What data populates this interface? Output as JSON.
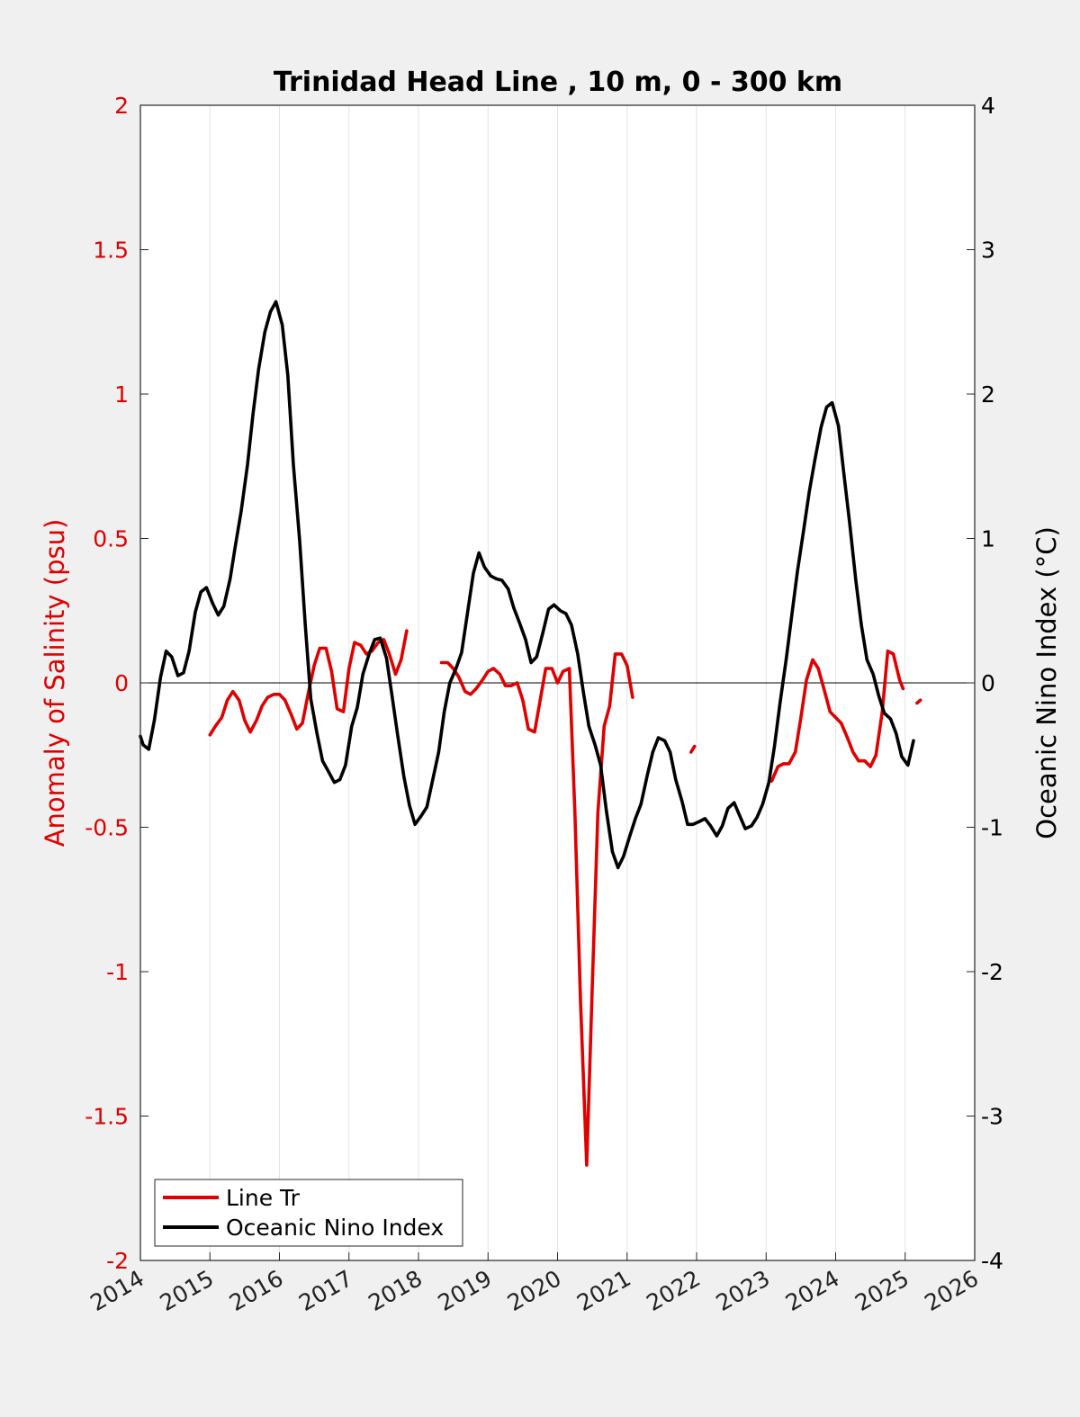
{
  "chart_data": {
    "type": "line",
    "title": "Trinidad Head Line , 10 m, 0 - 300 km",
    "xlim": [
      2014,
      2026
    ],
    "x_ticks": [
      "2014",
      "2015",
      "2016",
      "2017",
      "2018",
      "2019",
      "2020",
      "2021",
      "2022",
      "2023",
      "2024",
      "2025",
      "2026"
    ],
    "left_axis": {
      "label": "Anomaly of Salinity (psu)",
      "ylim": [
        -2,
        2
      ],
      "ticks": [
        "2",
        "1.5",
        "1",
        "0.5",
        "0",
        "-0.5",
        "-1",
        "-1.5",
        "-2"
      ],
      "color": "#e00000"
    },
    "right_axis": {
      "label": "Oceanic Nino Index (°C)",
      "ylim": [
        -4,
        4
      ],
      "ticks": [
        "4",
        "3",
        "2",
        "1",
        "0",
        "-1",
        "-2",
        "-3",
        "-4"
      ],
      "color": "#000000"
    },
    "grid": "vertical",
    "zero_line": true,
    "legend_position": "bottom-left",
    "series": [
      {
        "name": "Line Tr",
        "axis": "left",
        "color": "#e00000",
        "segments": [
          [
            [
              2015.0,
              -0.18
            ],
            [
              2015.08,
              -0.15
            ],
            [
              2015.17,
              -0.12
            ],
            [
              2015.25,
              -0.06
            ],
            [
              2015.33,
              -0.03
            ],
            [
              2015.42,
              -0.06
            ],
            [
              2015.5,
              -0.13
            ],
            [
              2015.58,
              -0.17
            ],
            [
              2015.67,
              -0.13
            ],
            [
              2015.75,
              -0.08
            ],
            [
              2015.83,
              -0.05
            ],
            [
              2015.92,
              -0.04
            ],
            [
              2016.0,
              -0.04
            ],
            [
              2016.08,
              -0.06
            ],
            [
              2016.17,
              -0.11
            ],
            [
              2016.25,
              -0.16
            ],
            [
              2016.33,
              -0.14
            ],
            [
              2016.42,
              -0.03
            ],
            [
              2016.5,
              0.06
            ],
            [
              2016.58,
              0.12
            ],
            [
              2016.67,
              0.12
            ],
            [
              2016.75,
              0.04
            ],
            [
              2016.83,
              -0.09
            ],
            [
              2016.92,
              -0.1
            ],
            [
              2017.0,
              0.05
            ],
            [
              2017.08,
              0.14
            ],
            [
              2017.17,
              0.13
            ],
            [
              2017.25,
              0.1
            ],
            [
              2017.33,
              0.11
            ],
            [
              2017.42,
              0.14
            ],
            [
              2017.5,
              0.15
            ],
            [
              2017.58,
              0.1
            ],
            [
              2017.67,
              0.03
            ],
            [
              2017.75,
              0.08
            ],
            [
              2017.83,
              0.18
            ]
          ],
          [
            [
              2018.33,
              0.07
            ],
            [
              2018.42,
              0.07
            ],
            [
              2018.5,
              0.05
            ],
            [
              2018.58,
              0.02
            ],
            [
              2018.67,
              -0.03
            ],
            [
              2018.75,
              -0.04
            ],
            [
              2018.83,
              -0.02
            ],
            [
              2018.92,
              0.01
            ],
            [
              2019.0,
              0.04
            ],
            [
              2019.08,
              0.05
            ],
            [
              2019.17,
              0.03
            ],
            [
              2019.25,
              -0.01
            ],
            [
              2019.33,
              -0.01
            ],
            [
              2019.42,
              0.0
            ],
            [
              2019.5,
              -0.06
            ],
            [
              2019.58,
              -0.16
            ],
            [
              2019.67,
              -0.17
            ],
            [
              2019.75,
              -0.06
            ],
            [
              2019.83,
              0.05
            ],
            [
              2019.92,
              0.05
            ],
            [
              2020.0,
              0.0
            ],
            [
              2020.08,
              0.04
            ],
            [
              2020.17,
              0.05
            ],
            [
              2020.25,
              -0.45
            ],
            [
              2020.33,
              -1.1
            ],
            [
              2020.42,
              -1.67
            ],
            [
              2020.5,
              -1.05
            ],
            [
              2020.58,
              -0.45
            ],
            [
              2020.67,
              -0.15
            ],
            [
              2020.75,
              -0.08
            ],
            [
              2020.83,
              0.1
            ],
            [
              2020.92,
              0.1
            ],
            [
              2021.0,
              0.06
            ],
            [
              2021.08,
              -0.05
            ]
          ],
          [
            [
              2021.92,
              -0.24
            ],
            [
              2021.97,
              -0.22
            ]
          ],
          [
            [
              2023.08,
              -0.34
            ],
            [
              2023.17,
              -0.29
            ],
            [
              2023.25,
              -0.28
            ],
            [
              2023.33,
              -0.28
            ],
            [
              2023.42,
              -0.24
            ],
            [
              2023.5,
              -0.12
            ],
            [
              2023.58,
              0.01
            ],
            [
              2023.67,
              0.08
            ],
            [
              2023.75,
              0.05
            ],
            [
              2023.83,
              -0.02
            ],
            [
              2023.92,
              -0.1
            ],
            [
              2024.0,
              -0.12
            ],
            [
              2024.08,
              -0.14
            ],
            [
              2024.17,
              -0.19
            ],
            [
              2024.25,
              -0.24
            ],
            [
              2024.33,
              -0.27
            ],
            [
              2024.42,
              -0.27
            ],
            [
              2024.5,
              -0.29
            ],
            [
              2024.58,
              -0.25
            ],
            [
              2024.67,
              -0.1
            ],
            [
              2024.75,
              0.11
            ],
            [
              2024.83,
              0.1
            ],
            [
              2024.92,
              0.01
            ],
            [
              2024.97,
              -0.02
            ]
          ],
          [
            [
              2025.17,
              -0.07
            ],
            [
              2025.22,
              -0.06
            ]
          ]
        ]
      },
      {
        "name": "Oceanic Nino Index",
        "axis": "right",
        "color": "#000000",
        "segments": [
          [
            [
              2014.0,
              -0.37
            ],
            [
              2014.04,
              -0.43
            ],
            [
              2014.12,
              -0.46
            ],
            [
              2014.2,
              -0.26
            ],
            [
              2014.29,
              0.04
            ],
            [
              2014.37,
              0.22
            ],
            [
              2014.45,
              0.18
            ],
            [
              2014.54,
              0.05
            ],
            [
              2014.62,
              0.07
            ],
            [
              2014.7,
              0.22
            ],
            [
              2014.79,
              0.49
            ],
            [
              2014.87,
              0.63
            ],
            [
              2014.95,
              0.66
            ],
            [
              2015.04,
              0.55
            ],
            [
              2015.12,
              0.47
            ],
            [
              2015.2,
              0.53
            ],
            [
              2015.29,
              0.72
            ],
            [
              2015.37,
              0.96
            ],
            [
              2015.45,
              1.19
            ],
            [
              2015.54,
              1.51
            ],
            [
              2015.62,
              1.86
            ],
            [
              2015.7,
              2.17
            ],
            [
              2015.79,
              2.43
            ],
            [
              2015.87,
              2.57
            ],
            [
              2015.95,
              2.64
            ],
            [
              2016.04,
              2.48
            ],
            [
              2016.12,
              2.13
            ],
            [
              2016.2,
              1.51
            ],
            [
              2016.29,
              0.99
            ],
            [
              2016.37,
              0.41
            ],
            [
              2016.45,
              -0.11
            ],
            [
              2016.54,
              -0.35
            ],
            [
              2016.62,
              -0.54
            ],
            [
              2016.7,
              -0.61
            ],
            [
              2016.79,
              -0.69
            ],
            [
              2016.87,
              -0.67
            ],
            [
              2016.95,
              -0.57
            ],
            [
              2017.04,
              -0.3
            ],
            [
              2017.12,
              -0.17
            ],
            [
              2017.2,
              0.06
            ],
            [
              2017.29,
              0.2
            ],
            [
              2017.37,
              0.3
            ],
            [
              2017.45,
              0.31
            ],
            [
              2017.54,
              0.17
            ],
            [
              2017.62,
              -0.09
            ],
            [
              2017.7,
              -0.36
            ],
            [
              2017.79,
              -0.65
            ],
            [
              2017.87,
              -0.85
            ],
            [
              2017.95,
              -0.98
            ],
            [
              2018.04,
              -0.92
            ],
            [
              2018.12,
              -0.86
            ],
            [
              2018.2,
              -0.68
            ],
            [
              2018.29,
              -0.48
            ],
            [
              2018.37,
              -0.2
            ],
            [
              2018.45,
              0.0
            ],
            [
              2018.54,
              0.1
            ],
            [
              2018.62,
              0.21
            ],
            [
              2018.7,
              0.47
            ],
            [
              2018.79,
              0.76
            ],
            [
              2018.87,
              0.9
            ],
            [
              2018.95,
              0.8
            ],
            [
              2019.04,
              0.74
            ],
            [
              2019.12,
              0.72
            ],
            [
              2019.2,
              0.71
            ],
            [
              2019.29,
              0.65
            ],
            [
              2019.37,
              0.52
            ],
            [
              2019.45,
              0.42
            ],
            [
              2019.54,
              0.3
            ],
            [
              2019.62,
              0.14
            ],
            [
              2019.7,
              0.18
            ],
            [
              2019.79,
              0.35
            ],
            [
              2019.87,
              0.51
            ],
            [
              2019.95,
              0.54
            ],
            [
              2020.04,
              0.5
            ],
            [
              2020.12,
              0.48
            ],
            [
              2020.2,
              0.4
            ],
            [
              2020.29,
              0.2
            ],
            [
              2020.37,
              -0.06
            ],
            [
              2020.45,
              -0.3
            ],
            [
              2020.54,
              -0.43
            ],
            [
              2020.62,
              -0.57
            ],
            [
              2020.7,
              -0.88
            ],
            [
              2020.79,
              -1.17
            ],
            [
              2020.87,
              -1.28
            ],
            [
              2020.95,
              -1.2
            ],
            [
              2021.04,
              -1.06
            ],
            [
              2021.12,
              -0.94
            ],
            [
              2021.2,
              -0.84
            ],
            [
              2021.29,
              -0.64
            ],
            [
              2021.37,
              -0.48
            ],
            [
              2021.45,
              -0.38
            ],
            [
              2021.54,
              -0.4
            ],
            [
              2021.62,
              -0.48
            ],
            [
              2021.7,
              -0.67
            ],
            [
              2021.79,
              -0.82
            ],
            [
              2021.87,
              -0.98
            ],
            [
              2021.95,
              -0.98
            ],
            [
              2022.04,
              -0.96
            ],
            [
              2022.12,
              -0.94
            ],
            [
              2022.2,
              -0.99
            ],
            [
              2022.29,
              -1.06
            ],
            [
              2022.37,
              -0.99
            ],
            [
              2022.45,
              -0.87
            ],
            [
              2022.54,
              -0.83
            ],
            [
              2022.62,
              -0.92
            ],
            [
              2022.7,
              -1.01
            ],
            [
              2022.79,
              -0.99
            ],
            [
              2022.87,
              -0.93
            ],
            [
              2022.95,
              -0.84
            ],
            [
              2023.04,
              -0.69
            ],
            [
              2023.12,
              -0.44
            ],
            [
              2023.2,
              -0.14
            ],
            [
              2023.29,
              0.17
            ],
            [
              2023.37,
              0.47
            ],
            [
              2023.45,
              0.77
            ],
            [
              2023.54,
              1.06
            ],
            [
              2023.62,
              1.32
            ],
            [
              2023.7,
              1.54
            ],
            [
              2023.79,
              1.77
            ],
            [
              2023.87,
              1.91
            ],
            [
              2023.95,
              1.94
            ],
            [
              2024.04,
              1.78
            ],
            [
              2024.12,
              1.44
            ],
            [
              2024.2,
              1.11
            ],
            [
              2024.29,
              0.71
            ],
            [
              2024.37,
              0.4
            ],
            [
              2024.45,
              0.16
            ],
            [
              2024.54,
              0.06
            ],
            [
              2024.62,
              -0.09
            ],
            [
              2024.7,
              -0.21
            ],
            [
              2024.79,
              -0.25
            ],
            [
              2024.87,
              -0.35
            ],
            [
              2024.95,
              -0.51
            ],
            [
              2025.04,
              -0.57
            ],
            [
              2025.12,
              -0.4
            ]
          ]
        ]
      }
    ]
  }
}
